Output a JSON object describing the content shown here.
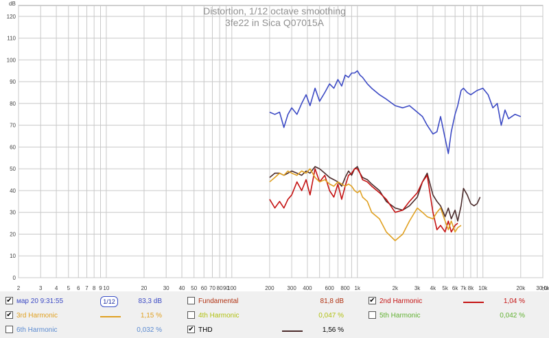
{
  "title_line1": "Distortion, 1/12 octave smoothing",
  "title_line2": "3fe22 in Sica Q07015A",
  "y_unit": "dB",
  "x_unit": "Hz",
  "colors": {
    "fundamental": "#3b49c4",
    "second": "#c41010",
    "third": "#e0a020",
    "thd": "#4a2a2a",
    "grid": "#c8c8c8"
  },
  "chart_data": {
    "type": "line",
    "title": "Distortion, 1/12 octave smoothing\n3fe22 in Sica Q07015A",
    "xlabel": "Hz",
    "ylabel": "dB",
    "xscale": "log",
    "xlim": [
      2,
      30000
    ],
    "ylim": [
      0,
      125
    ],
    "grid": true,
    "y_ticks": [
      "0",
      "10",
      "20",
      "30",
      "40",
      "50",
      "60",
      "70",
      "80",
      "90",
      "100",
      "110",
      "120"
    ],
    "x_ticks": [
      {
        "v": 2,
        "label": "2"
      },
      {
        "v": 3,
        "label": "3"
      },
      {
        "v": 4,
        "label": "4"
      },
      {
        "v": 5,
        "label": "5"
      },
      {
        "v": 6,
        "label": "6"
      },
      {
        "v": 7,
        "label": "7"
      },
      {
        "v": 8,
        "label": "8"
      },
      {
        "v": 9,
        "label": "9"
      },
      {
        "v": 10,
        "label": "10"
      },
      {
        "v": 20,
        "label": "20"
      },
      {
        "v": 30,
        "label": "30"
      },
      {
        "v": 40,
        "label": "40"
      },
      {
        "v": 50,
        "label": "50"
      },
      {
        "v": 60,
        "label": "60"
      },
      {
        "v": 70,
        "label": "70"
      },
      {
        "v": 80,
        "label": "80"
      },
      {
        "v": 90,
        "label": "90"
      },
      {
        "v": 100,
        "label": "100"
      },
      {
        "v": 200,
        "label": "200"
      },
      {
        "v": 300,
        "label": "300"
      },
      {
        "v": 400,
        "label": "400"
      },
      {
        "v": 600,
        "label": "600"
      },
      {
        "v": 800,
        "label": "800"
      },
      {
        "v": 1000,
        "label": "1k"
      },
      {
        "v": 2000,
        "label": "2k"
      },
      {
        "v": 3000,
        "label": "3k"
      },
      {
        "v": 4000,
        "label": "4k"
      },
      {
        "v": 5000,
        "label": "5k"
      },
      {
        "v": 6000,
        "label": "6k"
      },
      {
        "v": 7000,
        "label": "7k"
      },
      {
        "v": 8000,
        "label": "8k"
      },
      {
        "v": 10000,
        "label": "10k"
      },
      {
        "v": 20000,
        "label": "20k"
      },
      {
        "v": 30000,
        "label": "30,0k"
      }
    ],
    "series": [
      {
        "name": "мар 20 9:31:55",
        "color": "#3b49c4",
        "x": [
          200,
          220,
          240,
          260,
          280,
          300,
          330,
          360,
          390,
          420,
          460,
          500,
          550,
          600,
          650,
          700,
          750,
          800,
          850,
          900,
          950,
          1000,
          1050,
          1100,
          1200,
          1300,
          1500,
          1700,
          2000,
          2300,
          2600,
          3000,
          3300,
          3600,
          4000,
          4300,
          4600,
          5000,
          5300,
          5600,
          6000,
          6300,
          6700,
          7000,
          7500,
          8000,
          9000,
          10000,
          11000,
          12000,
          13000,
          14000,
          15000,
          16000,
          18000,
          20000
        ],
        "y": [
          76,
          75,
          76,
          69,
          75,
          78,
          75,
          80,
          84,
          79,
          87,
          81,
          85,
          89,
          87,
          91,
          88,
          93,
          92,
          94,
          94,
          95,
          93,
          92,
          89,
          87,
          84,
          82,
          79,
          78,
          79,
          76,
          74,
          70,
          66,
          67,
          74,
          64,
          57,
          67,
          75,
          79,
          86,
          87,
          85,
          84,
          86,
          87,
          84,
          78,
          80,
          70,
          77,
          73,
          75,
          74
        ]
      },
      {
        "name": "THD",
        "color": "#4a2a2a",
        "x": [
          200,
          220,
          240,
          260,
          280,
          300,
          330,
          360,
          390,
          420,
          460,
          500,
          550,
          600,
          650,
          700,
          750,
          800,
          850,
          900,
          950,
          1000,
          1050,
          1100,
          1200,
          1300,
          1500,
          1700,
          2000,
          2300,
          2600,
          3000,
          3300,
          3600,
          4000,
          4300,
          4600,
          5000,
          5300,
          5600,
          6000,
          6300,
          6700,
          7000,
          7500,
          8000,
          8500,
          9000,
          9500
        ],
        "y": [
          46,
          48,
          48,
          47,
          48,
          49,
          48,
          47,
          49,
          48,
          51,
          50,
          48,
          46,
          45,
          44,
          42,
          46,
          49,
          47,
          50,
          51,
          48,
          46,
          45,
          43,
          40,
          35,
          32,
          31,
          33,
          37,
          44,
          48,
          38,
          35,
          33,
          28,
          32,
          27,
          31,
          26,
          33,
          41,
          38,
          34,
          33,
          34,
          37
        ]
      },
      {
        "name": "2nd Harmonic",
        "color": "#c41010",
        "x": [
          200,
          220,
          240,
          260,
          280,
          300,
          330,
          360,
          390,
          420,
          460,
          500,
          550,
          600,
          650,
          700,
          750,
          800,
          850,
          900,
          950,
          1000,
          1050,
          1100,
          1200,
          1300,
          1500,
          1700,
          2000,
          2300,
          2600,
          3000,
          3300,
          3600,
          4000,
          4300,
          4600,
          5000,
          5300,
          5600,
          6000,
          6300
        ],
        "y": [
          36,
          32,
          35,
          32,
          36,
          38,
          44,
          40,
          45,
          38,
          50,
          44,
          47,
          40,
          37,
          43,
          36,
          42,
          47,
          48,
          50,
          50,
          48,
          45,
          44,
          42,
          39,
          36,
          30,
          31,
          35,
          39,
          44,
          47,
          30,
          22,
          24,
          21,
          26,
          21,
          24,
          25
        ]
      },
      {
        "name": "3rd Harmonic",
        "color": "#e0a020",
        "x": [
          200,
          220,
          240,
          260,
          280,
          300,
          330,
          360,
          390,
          420,
          460,
          500,
          550,
          600,
          650,
          700,
          750,
          800,
          850,
          900,
          950,
          1000,
          1050,
          1100,
          1200,
          1300,
          1500,
          1700,
          2000,
          2300,
          2600,
          3000,
          3300,
          3600,
          4000,
          4300,
          4600,
          5000,
          5300,
          5600,
          6000,
          6300,
          6700
        ],
        "y": [
          44,
          46,
          48,
          47,
          49,
          48,
          47,
          49,
          48,
          50,
          46,
          44,
          45,
          43,
          42,
          44,
          43,
          42,
          43,
          42,
          40,
          39,
          40,
          37,
          35,
          30,
          27,
          21,
          17,
          20,
          26,
          32,
          30,
          28,
          27,
          30,
          32,
          26,
          22,
          26,
          21,
          23,
          24
        ]
      }
    ]
  },
  "legend": {
    "rows": [
      [
        {
          "id": "meas",
          "checked": true,
          "label": "мар 20 9:31:55",
          "color": "#3b49c4",
          "swatch": false,
          "smoothing": "1/12",
          "value": "83,3 dB"
        },
        {
          "id": "fund",
          "checked": false,
          "label": "Fundamental",
          "color": "#b03010",
          "swatch": false,
          "value": "81,8 dB"
        },
        {
          "id": "h2",
          "checked": true,
          "label": "2nd Harmonic",
          "color": "#c41010",
          "swatch": true,
          "value": "1,04 %"
        }
      ],
      [
        {
          "id": "h3",
          "checked": true,
          "label": "3rd Harmonic",
          "color": "#e0a020",
          "swatch": true,
          "value": "1,15 %"
        },
        {
          "id": "h4",
          "checked": false,
          "label": "4th Harmonic",
          "color": "#b0c010",
          "swatch": false,
          "value": "0,047 %"
        },
        {
          "id": "h5",
          "checked": false,
          "label": "5th Harmonic",
          "color": "#60b030",
          "swatch": false,
          "value": "0,042 %"
        }
      ],
      [
        {
          "id": "h6",
          "checked": false,
          "label": "6th Harmonic",
          "color": "#5a8ad0",
          "swatch": false,
          "value": "0,032 %"
        },
        {
          "id": "thd",
          "checked": true,
          "label": "THD",
          "color": "#000000",
          "swatch": true,
          "swatchColor": "#4a2a2a",
          "value": "1,56 %"
        }
      ]
    ]
  }
}
